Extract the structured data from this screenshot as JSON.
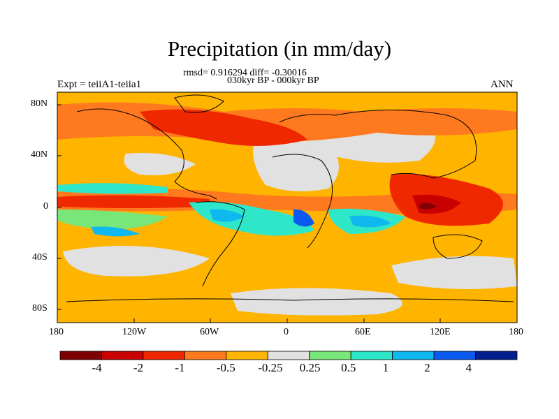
{
  "title": "Precipitation (in mm/day)",
  "stats_line": "rmsd= 0.916294 diff= -0.30016",
  "period_line": "030kyr BP - 000kyr BP",
  "experiment": "Expt = teiiA1-teiia1",
  "season": "ANN",
  "lat_ticks": [
    "80N",
    "40N",
    "0",
    "40S",
    "80S"
  ],
  "lon_ticks": [
    "180",
    "120W",
    "60W",
    "0",
    "60E",
    "120E",
    "180"
  ],
  "colorbar": {
    "colors": [
      "#7f0000",
      "#c80000",
      "#f02800",
      "#ff7a1e",
      "#ffb400",
      "#e1e1e1",
      "#78e678",
      "#2ee6c8",
      "#10b8f0",
      "#0a5af0",
      "#001e8c"
    ],
    "labels": [
      "-4",
      "-2",
      "-1",
      "-0.5",
      "-0.25",
      "0.25",
      "0.5",
      "1",
      "2",
      "4"
    ]
  },
  "chart_data": {
    "type": "heatmap",
    "variable": "Precipitation (in mm/day)",
    "levels": [
      -4,
      -2,
      -1,
      -0.5,
      -0.25,
      0.25,
      0.5,
      1,
      2,
      4
    ],
    "rmsd": 0.916294,
    "diff": -0.30016,
    "xlim": [
      -180,
      180
    ],
    "ylim": [
      -90,
      90
    ],
    "xticks": [
      "180",
      "120W",
      "60W",
      "0",
      "60E",
      "120E",
      "180"
    ],
    "yticks": [
      "80N",
      "40N",
      "0",
      "40S",
      "80S"
    ]
  }
}
